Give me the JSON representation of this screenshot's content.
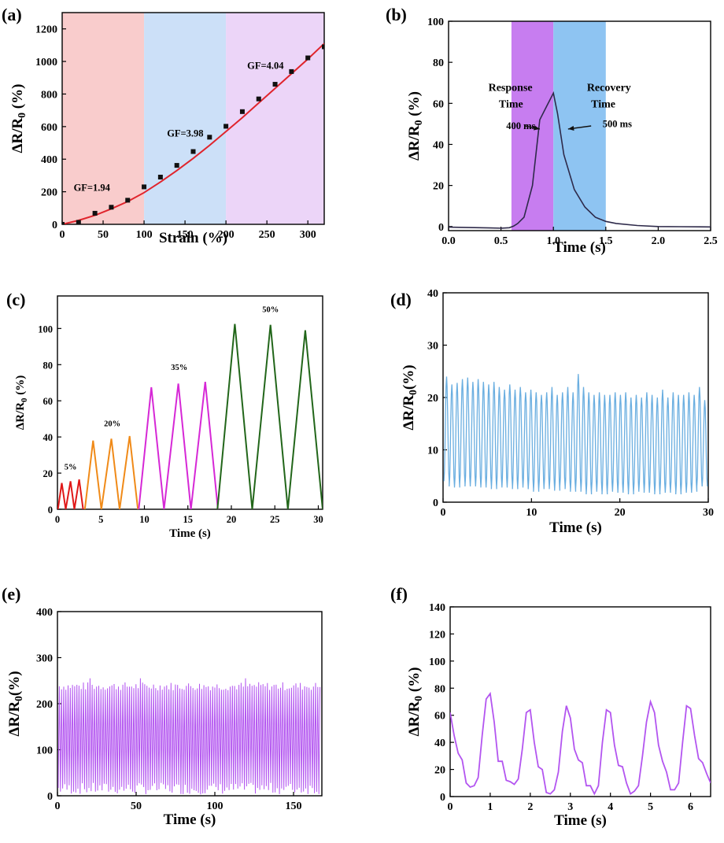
{
  "colors": {
    "red_region": "#f9cccc",
    "blue_region": "#cce0f8",
    "lilac_region": "#ecd5f8",
    "purple_window": "#c77df0",
    "blue_window": "#8ec4f2",
    "fit_line": "#e0242c",
    "dark_line": "#2e2a4a",
    "red": "#e01818",
    "orange": "#f08a18",
    "magenta": "#d628d6",
    "green": "#22661a",
    "light_blue": "#6aaee0",
    "violet": "#b355f0"
  },
  "chart_data": [
    {
      "id": "a",
      "panel_label": "(a)",
      "type": "scatter",
      "title": "",
      "xlabel": "Strain (%)",
      "ylabel": "ΔR/R0 (%)",
      "xlim": [
        0,
        320
      ],
      "ylim": [
        0,
        1300
      ],
      "xticks": [
        "0",
        "50",
        "100",
        "150",
        "200",
        "250",
        "300"
      ],
      "yticks": [
        "0",
        "200",
        "400",
        "600",
        "800",
        "1000",
        "1200"
      ],
      "regions": [
        {
          "from": 0,
          "to": 100,
          "color_key": "red_region"
        },
        {
          "from": 100,
          "to": 200,
          "color_key": "blue_region"
        },
        {
          "from": 200,
          "to": 320,
          "color_key": "lilac_region"
        }
      ],
      "points": {
        "x": [
          0,
          20,
          40,
          60,
          80,
          100,
          120,
          140,
          160,
          180,
          200,
          220,
          240,
          260,
          280,
          300,
          320
        ],
        "y": [
          0,
          12,
          68,
          105,
          148,
          230,
          290,
          362,
          447,
          535,
          602,
          692,
          770,
          860,
          938,
          1022,
          1090
        ]
      },
      "fit": {
        "x": [
          0,
          20,
          40,
          60,
          80,
          100,
          120,
          140,
          160,
          180,
          200,
          220,
          240,
          260,
          280,
          300,
          320
        ],
        "y": [
          0,
          24,
          55,
          95,
          140,
          195,
          260,
          330,
          405,
          485,
          570,
          655,
          745,
          835,
          925,
          1015,
          1110
        ]
      },
      "annotations": [
        {
          "text": "GF=1.94",
          "x": 14,
          "y": 205
        },
        {
          "text": "GF=3.98",
          "x": 128,
          "y": 540
        },
        {
          "text": "GF=4.04",
          "x": 226,
          "y": 955
        }
      ]
    },
    {
      "id": "b",
      "panel_label": "(b)",
      "type": "line",
      "title": "",
      "xlabel": "Time (s)",
      "ylabel": "ΔR/R0 (%)",
      "xlim": [
        0,
        2.5
      ],
      "ylim": [
        -2,
        100
      ],
      "xticks": [
        "0.0",
        "0.5",
        "1.0",
        "1.5",
        "2.0",
        "2.5"
      ],
      "yticks": [
        "0",
        "20",
        "40",
        "60",
        "80",
        "100"
      ],
      "windows": [
        {
          "from": 0.6,
          "to": 1.0,
          "color_key": "purple_window"
        },
        {
          "from": 1.0,
          "to": 1.5,
          "color_key": "blue_window"
        }
      ],
      "series": [
        {
          "name": "response",
          "x": [
            0,
            0.1,
            0.2,
            0.3,
            0.4,
            0.5,
            0.58,
            0.62,
            0.66,
            0.72,
            0.8,
            0.87,
            0.94,
            1.0,
            1.04,
            1.1,
            1.2,
            1.3,
            1.4,
            1.5,
            1.6,
            1.8,
            2.0,
            2.2,
            2.5
          ],
          "y": [
            -0.3,
            -0.4,
            -0.5,
            -0.6,
            -0.7,
            -0.8,
            -0.6,
            0.2,
            1.5,
            4.5,
            20,
            52,
            59,
            65,
            55,
            35,
            18,
            9.5,
            4.5,
            2.5,
            1.5,
            0.5,
            0,
            -0.1,
            -0.2
          ]
        }
      ],
      "annotations": [
        {
          "text": "Response",
          "x": 0.38,
          "y": 66
        },
        {
          "text": "Time",
          "x": 0.48,
          "y": 58
        },
        {
          "text": "400 ms",
          "x": 0.55,
          "y": 47.5
        },
        {
          "text": "Recovery",
          "x": 1.32,
          "y": 66
        },
        {
          "text": "Time",
          "x": 1.36,
          "y": 58
        },
        {
          "text": "500 ms",
          "x": 1.47,
          "y": 48.5
        }
      ]
    },
    {
      "id": "c",
      "panel_label": "(c)",
      "type": "line",
      "title": "",
      "xlabel": "Time (s)",
      "ylabel": "ΔR/R0 (%)",
      "xlim": [
        0,
        30.5
      ],
      "ylim": [
        0,
        118
      ],
      "xticks": [
        "0",
        "5",
        "10",
        "15",
        "20",
        "25",
        "30"
      ],
      "yticks": [
        "0",
        "20",
        "40",
        "60",
        "80",
        "100"
      ],
      "series": [
        {
          "name": "5%",
          "color_key": "red",
          "peaks_x": [
            0.5,
            1.5,
            2.5
          ],
          "peak_values": [
            14.5,
            15.5,
            16.5
          ],
          "half_width": 0.45
        },
        {
          "name": "20%",
          "color_key": "orange",
          "peaks_x": [
            4.1,
            6.2,
            8.3
          ],
          "peak_values": [
            38,
            39,
            40.5
          ],
          "half_width": 0.95
        },
        {
          "name": "35%",
          "color_key": "magenta",
          "peaks_x": [
            10.8,
            13.9,
            17.0
          ],
          "peak_values": [
            67.5,
            69.5,
            70.5
          ],
          "half_width": 1.45
        },
        {
          "name": "50%",
          "color_key": "green",
          "peaks_x": [
            20.4,
            24.5,
            28.5
          ],
          "peak_values": [
            102.5,
            102,
            99
          ],
          "half_width": 2.0
        }
      ],
      "annotations": [
        {
          "text": "5%",
          "x": 1.5,
          "y": 22
        },
        {
          "text": "20%",
          "x": 6.3,
          "y": 46
        },
        {
          "text": "35%",
          "x": 14.0,
          "y": 77
        },
        {
          "text": "50%",
          "x": 24.5,
          "y": 109
        }
      ]
    },
    {
      "id": "d",
      "panel_label": "(d)",
      "type": "line",
      "title": "",
      "xlabel": "Time (s)",
      "ylabel": "ΔR/R0(%)",
      "xlim": [
        0,
        30
      ],
      "ylim": [
        0,
        40
      ],
      "xticks": [
        "0",
        "10",
        "20",
        "30"
      ],
      "yticks": [
        "0",
        "10",
        "20",
        "30",
        "40"
      ],
      "series": [
        {
          "name": "signal",
          "color_key": "light_blue",
          "cycles": 50,
          "peaks": [
            24,
            22.5,
            22.8,
            23.5,
            23.8,
            23,
            23.5,
            23,
            22.5,
            23,
            22,
            21.5,
            22.5,
            21.5,
            22,
            21,
            21.5,
            21,
            20.5,
            21,
            22,
            20.5,
            21,
            22,
            21,
            24.5,
            22,
            21,
            20.5,
            21,
            20.5,
            20.5,
            21,
            20.5,
            21,
            20,
            20.5,
            20,
            21,
            20.5,
            20,
            21.5,
            20,
            21,
            20.5,
            20.5,
            21,
            20.5,
            22,
            19.5
          ],
          "valleys": [
            4,
            3,
            2.8,
            3.5,
            3,
            3.2,
            3,
            2.8,
            3,
            2.5,
            3,
            2.8,
            3,
            2.5,
            3,
            2.8,
            2.5,
            2,
            2.5,
            2.8,
            2.5,
            2.2,
            3,
            2.5,
            2,
            2.5,
            2,
            1.5,
            2.2,
            2,
            1.5,
            2,
            2.2,
            1.8,
            2,
            1.5,
            2,
            2.2,
            1.8,
            2,
            1.5,
            2,
            1.8,
            2.2,
            1.5,
            2,
            1.8,
            2,
            3,
            3
          ]
        }
      ]
    },
    {
      "id": "e",
      "panel_label": "(e)",
      "type": "line",
      "title": "",
      "xlabel": "Time (s)",
      "ylabel": "ΔR/R0(%)",
      "xlim": [
        0,
        168
      ],
      "ylim": [
        0,
        400
      ],
      "xticks": [
        "0",
        "50",
        "100",
        "150"
      ],
      "yticks": [
        "0",
        "100",
        "200",
        "300",
        "400"
      ],
      "series": [
        {
          "name": "signal",
          "color_key": "violet",
          "cycles": 120,
          "peak_mean": 238,
          "peak_spread": 9,
          "peak_max": 255,
          "valley_min": 3,
          "valley_max": 28
        }
      ]
    },
    {
      "id": "f",
      "panel_label": "(f)",
      "type": "line",
      "title": "",
      "xlabel": "Time (s)",
      "ylabel": "ΔR/R0 (%)",
      "xlim": [
        0,
        6.5
      ],
      "ylim": [
        0,
        140
      ],
      "xticks": [
        "0",
        "1",
        "2",
        "3",
        "4",
        "5",
        "6"
      ],
      "yticks": [
        "0",
        "20",
        "40",
        "60",
        "80",
        "100",
        "120",
        "140"
      ],
      "series": [
        {
          "name": "signal",
          "color_key": "violet",
          "x": [
            0,
            0.1,
            0.2,
            0.3,
            0.4,
            0.5,
            0.6,
            0.7,
            0.8,
            0.9,
            1.0,
            1.1,
            1.2,
            1.3,
            1.4,
            1.5,
            1.6,
            1.7,
            1.8,
            1.9,
            2.0,
            2.1,
            2.2,
            2.3,
            2.4,
            2.5,
            2.6,
            2.7,
            2.8,
            2.9,
            3.0,
            3.1,
            3.2,
            3.3,
            3.4,
            3.5,
            3.6,
            3.7,
            3.8,
            3.9,
            4.0,
            4.1,
            4.2,
            4.3,
            4.4,
            4.5,
            4.6,
            4.7,
            4.8,
            4.9,
            5.0,
            5.1,
            5.2,
            5.3,
            5.4,
            5.5,
            5.6,
            5.7,
            5.8,
            5.9,
            6.0,
            6.1,
            6.2,
            6.3,
            6.4,
            6.5
          ],
          "y": [
            62,
            45,
            32,
            27,
            10,
            7,
            8,
            14,
            45,
            72,
            76,
            55,
            26,
            26,
            12,
            11,
            9,
            13,
            35,
            62,
            64,
            40,
            22,
            20,
            3,
            2,
            5,
            18,
            48,
            67,
            58,
            35,
            27,
            25,
            8,
            8,
            2,
            8,
            40,
            64,
            62,
            38,
            23,
            22,
            10,
            2,
            4,
            8,
            30,
            55,
            70,
            62,
            38,
            26,
            18,
            5,
            5,
            10,
            40,
            67,
            65,
            45,
            28,
            25,
            17,
            10
          ]
        }
      ]
    }
  ]
}
